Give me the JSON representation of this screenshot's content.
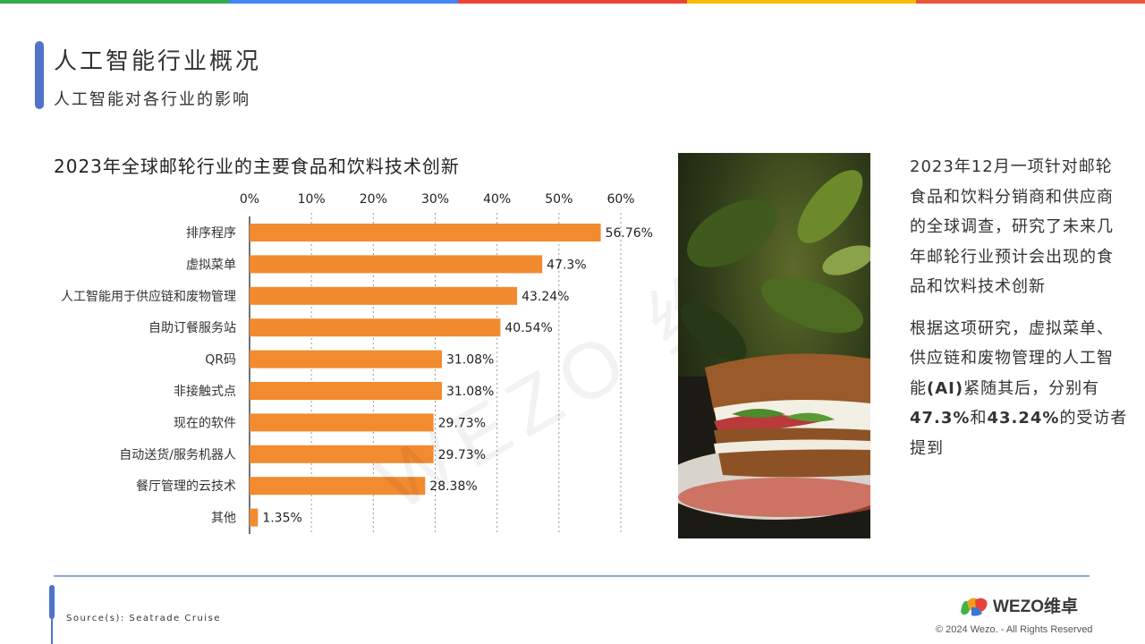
{
  "header": {
    "title": "人工智能行业概况",
    "subtitle": "人工智能对各行业的影响"
  },
  "topbar_colors": [
    "#34a853",
    "#4285f4",
    "#ea4335",
    "#fbbc05",
    "#e8553a"
  ],
  "accent_color": "#4f74c9",
  "chart_data": {
    "type": "bar",
    "orientation": "horizontal",
    "title": "2023年全球邮轮行业的主要食品和饮料技术创新",
    "categories": [
      "排序程序",
      "虚拟菜单",
      "人工智能用于供应链和废物管理",
      "自助订餐服务站",
      "QR码",
      "非接触式点",
      "现在的软件",
      "自动送货/服务机器人",
      "餐厅管理的云技术",
      "其他"
    ],
    "values": [
      56.76,
      47.3,
      43.24,
      40.54,
      31.08,
      31.08,
      29.73,
      29.73,
      28.38,
      1.35
    ],
    "value_labels": [
      "56.76%",
      "47.3%",
      "43.24%",
      "40.54%",
      "31.08%",
      "31.08%",
      "29.73%",
      "29.73%",
      "28.38%",
      "1.35%"
    ],
    "xlim": [
      0,
      60
    ],
    "xticks": [
      "0%",
      "10%",
      "20%",
      "30%",
      "40%",
      "50%",
      "60%"
    ],
    "xaxis_position": "top",
    "grid": "vertical dotted",
    "bar_color": "#f28a30"
  },
  "description": {
    "p1": "2023年12月一项针对邮轮食品和饮料分销商和供应商的全球调查，研究了未来几年邮轮行业预计会出现的食品和饮料技术创新",
    "p2_before": "根据这项研究，虚拟菜单、供应链和废物管理的人工智能",
    "p2_ai": "(AI)",
    "p2_mid1": "紧随其后，分别有",
    "p2_pct1": "47.3%",
    "p2_mid2": "和",
    "p2_pct2": "43.24%",
    "p2_after": "的受访者提到"
  },
  "footer": {
    "source": "Source(s): Seatrade Cruise",
    "logo_text": "WEZO维卓",
    "copyright": "© 2024 Wezo. - All Rights Reserved"
  },
  "watermark": "WEZO 维卓"
}
